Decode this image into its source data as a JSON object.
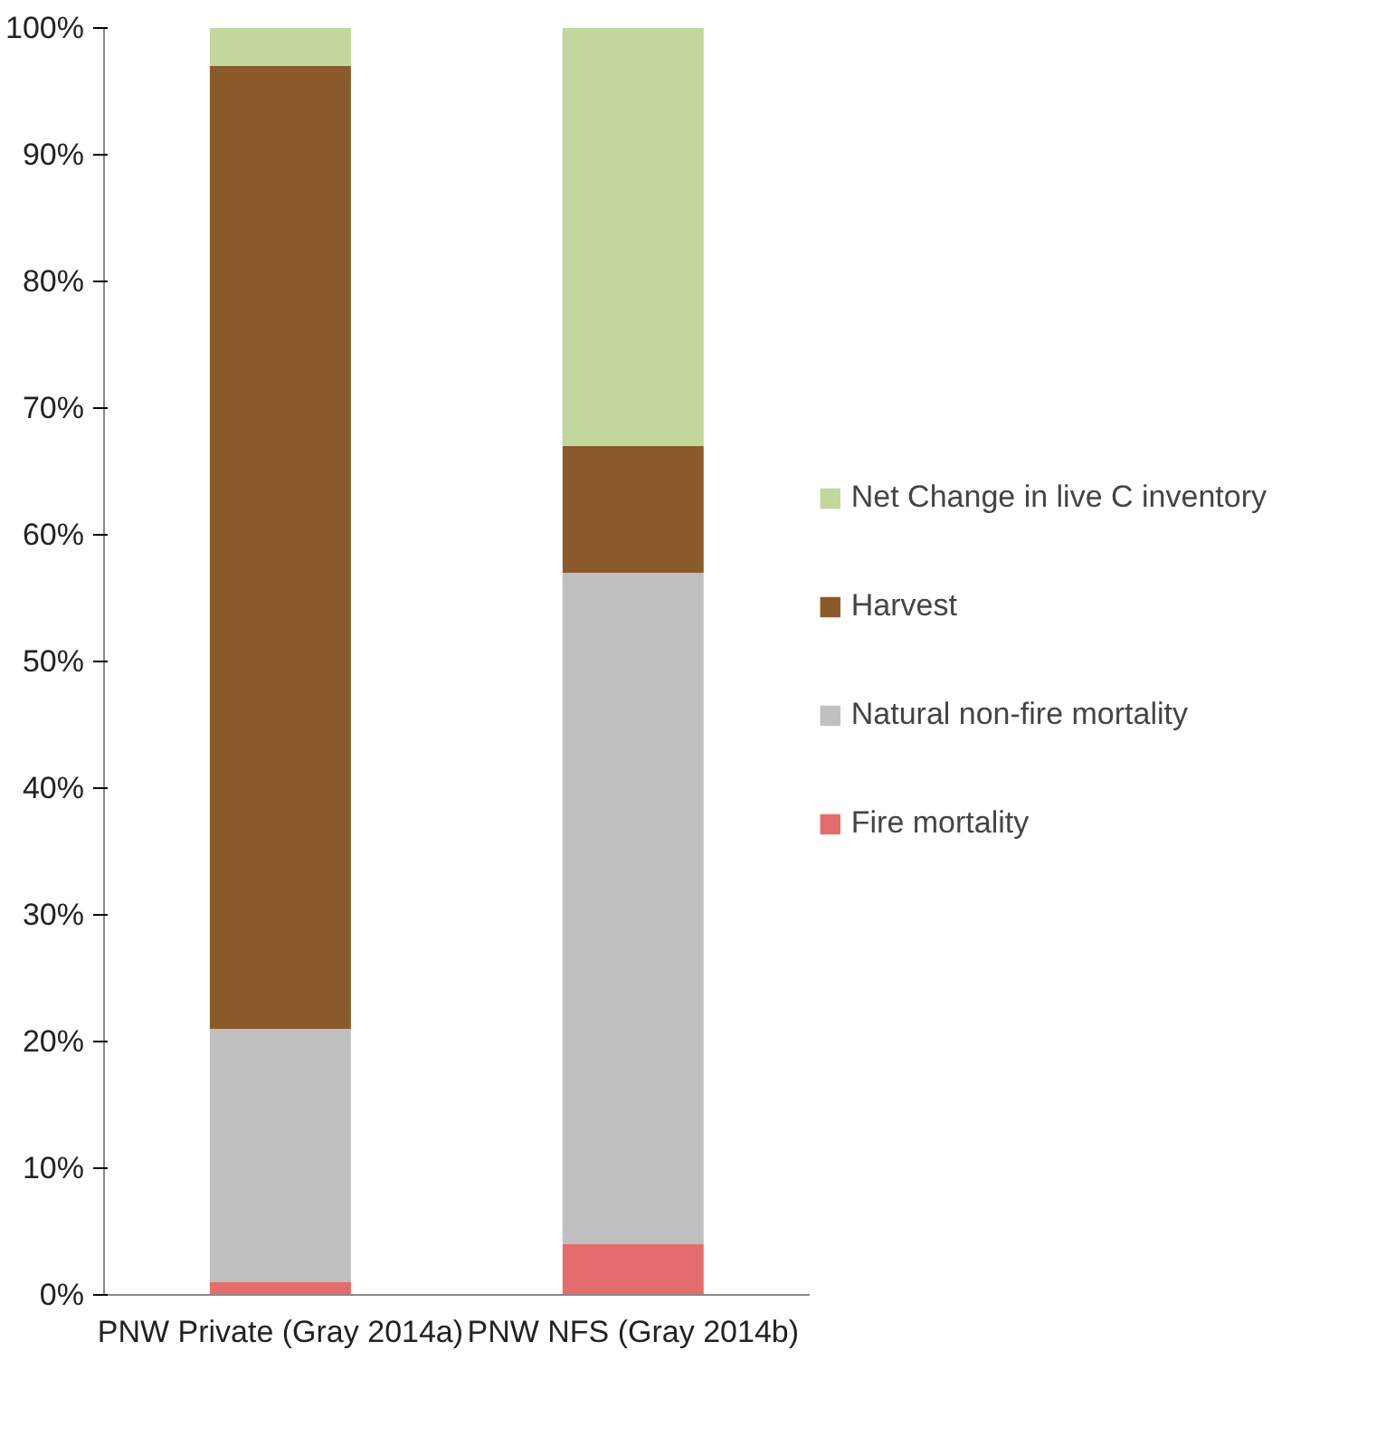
{
  "chart_data": {
    "type": "bar",
    "stacked": true,
    "categories": [
      "PNW Private (Gray 2014a)",
      "PNW NFS (Gray 2014b)"
    ],
    "series": [
      {
        "name": "Fire mortality",
        "color": "#e46c6c",
        "values": [
          1,
          4
        ]
      },
      {
        "name": "Natural non-fire mortality",
        "color": "#bfbfbf",
        "values": [
          20,
          53
        ]
      },
      {
        "name": "Harvest",
        "color": "#8b5a2b",
        "values": [
          76,
          10
        ]
      },
      {
        "name": "Net Change in live C inventory",
        "color": "#c3d69b",
        "values": [
          3,
          33
        ]
      }
    ],
    "ylim": [
      0,
      100
    ],
    "yticks": [
      {
        "value": 0,
        "label": "0%"
      },
      {
        "value": 10,
        "label": "10%"
      },
      {
        "value": 20,
        "label": "20%"
      },
      {
        "value": 30,
        "label": "30%"
      },
      {
        "value": 40,
        "label": "40%"
      },
      {
        "value": 50,
        "label": "50%"
      },
      {
        "value": 60,
        "label": "60%"
      },
      {
        "value": 70,
        "label": "70%"
      },
      {
        "value": 80,
        "label": "80%"
      },
      {
        "value": 90,
        "label": "90%"
      },
      {
        "value": 100,
        "label": "100%"
      }
    ],
    "grid": false,
    "legend": "right"
  }
}
